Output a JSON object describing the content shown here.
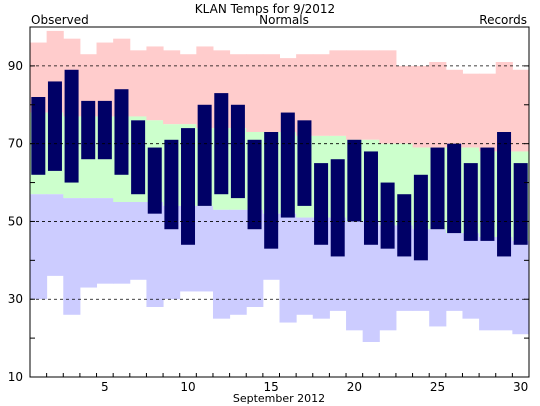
{
  "chart_data": {
    "type": "bar",
    "title": "KLAN Temps for 9/2012",
    "xlabel": "September 2012",
    "ylabel": "",
    "legend": [
      {
        "name": "Observed",
        "color": "#000066"
      },
      {
        "name": "Normals",
        "color": "#008000"
      },
      {
        "name": "Records",
        "color": "#a488d6"
      }
    ],
    "ylim": [
      10,
      100
    ],
    "y_ticks": [
      10,
      30,
      50,
      70,
      90
    ],
    "x_ticks": [
      5,
      10,
      15,
      20,
      25,
      30
    ],
    "dashed_gridlines": [
      30,
      50,
      70,
      90
    ],
    "days": [
      1,
      2,
      3,
      4,
      5,
      6,
      7,
      8,
      9,
      10,
      11,
      12,
      13,
      14,
      15,
      16,
      17,
      18,
      19,
      20,
      21,
      22,
      23,
      24,
      25,
      26,
      27,
      28,
      29,
      30
    ],
    "record_high": [
      96,
      99,
      97,
      93,
      96,
      97,
      94,
      95,
      94,
      93,
      95,
      94,
      93,
      93,
      93,
      92,
      93,
      93,
      94,
      94,
      94,
      94,
      90,
      90,
      91,
      89,
      88,
      88,
      91,
      89
    ],
    "normal_high": [
      78,
      78,
      77,
      77,
      77,
      77,
      77,
      76,
      75,
      75,
      74,
      74,
      74,
      73,
      73,
      73,
      72,
      72,
      72,
      71,
      71,
      70,
      70,
      69,
      69,
      69,
      69,
      68,
      68,
      68
    ],
    "normal_low": [
      57,
      57,
      56,
      56,
      56,
      55,
      55,
      55,
      54,
      54,
      54,
      53,
      53,
      53,
      52,
      52,
      51,
      51,
      51,
      50,
      50,
      49,
      49,
      48,
      48,
      47,
      47,
      46,
      46,
      45
    ],
    "record_low": [
      30,
      36,
      26,
      33,
      34,
      34,
      35,
      28,
      30,
      32,
      32,
      25,
      26,
      28,
      35,
      24,
      26,
      25,
      27,
      22,
      19,
      22,
      27,
      27,
      23,
      27,
      25,
      22,
      22,
      21
    ],
    "observed_high": [
      82,
      86,
      89,
      81,
      81,
      84,
      76,
      69,
      71,
      74,
      80,
      83,
      80,
      71,
      73,
      78,
      76,
      65,
      66,
      71,
      68,
      60,
      57,
      62,
      69,
      70,
      65,
      69,
      73,
      65
    ],
    "observed_low": [
      62,
      63,
      60,
      66,
      66,
      62,
      57,
      52,
      48,
      44,
      54,
      57,
      56,
      48,
      43,
      51,
      54,
      44,
      41,
      50,
      44,
      43,
      41,
      40,
      48,
      47,
      45,
      45,
      41,
      44
    ],
    "colors": {
      "records": "#ffcccc",
      "normals": "#ccffcc",
      "records_low": "#ccccff",
      "observed": "#000066",
      "title_observed": "#000066",
      "title_normals": "#008000",
      "title_records": "#a488d6"
    }
  }
}
